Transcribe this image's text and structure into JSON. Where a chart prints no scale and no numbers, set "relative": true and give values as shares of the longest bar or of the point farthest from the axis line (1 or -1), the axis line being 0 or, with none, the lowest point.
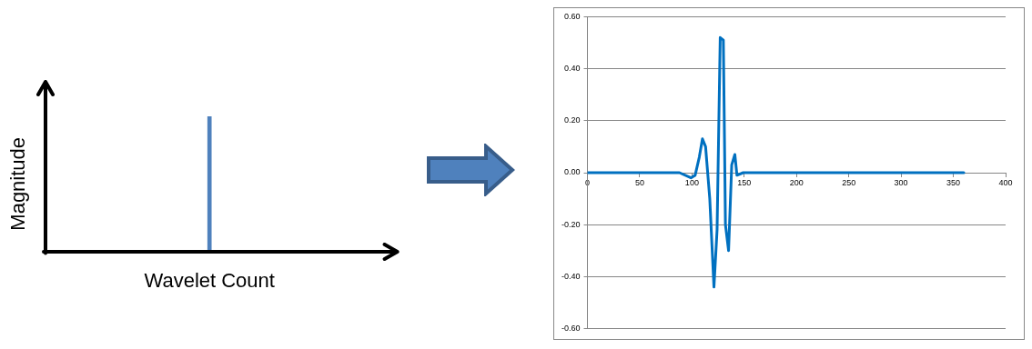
{
  "chart_data": [
    {
      "type": "bar",
      "relative": true,
      "xlabel": "Wavelet Count",
      "ylabel": "Magnitude",
      "tick_labels": false,
      "color": "#4f81bd",
      "categories": [
        null
      ],
      "values": [
        1
      ]
    },
    {
      "type": "line",
      "color": "#0070c0",
      "marker": "none",
      "grid": "y",
      "xlim": [
        0,
        400
      ],
      "xticks": [
        0,
        50,
        100,
        150,
        200,
        250,
        300,
        350,
        400
      ],
      "ylim": [
        -0.6,
        0.6
      ],
      "yticks": [
        {
          "value": -0.6,
          "label": "-0.60"
        },
        {
          "value": -0.4,
          "label": "-0.40"
        },
        {
          "value": -0.2,
          "label": "-0.20"
        },
        {
          "value": 0,
          "label": "0.00"
        },
        {
          "value": 0.2,
          "label": "0.20"
        },
        {
          "value": 0.4,
          "label": "0.40"
        },
        {
          "value": 0.6,
          "label": "0.60"
        }
      ],
      "x": [
        0,
        88,
        99,
        103,
        107,
        110,
        113,
        117,
        121,
        124,
        127,
        130,
        132,
        135,
        138,
        141,
        143,
        149,
        360
      ],
      "values": [
        0,
        0,
        -0.02,
        -0.01,
        0.06,
        0.13,
        0.1,
        -0.1,
        -0.44,
        -0.22,
        0.52,
        0.51,
        -0.2,
        -0.3,
        0.03,
        0.07,
        -0.01,
        0,
        0
      ]
    }
  ]
}
